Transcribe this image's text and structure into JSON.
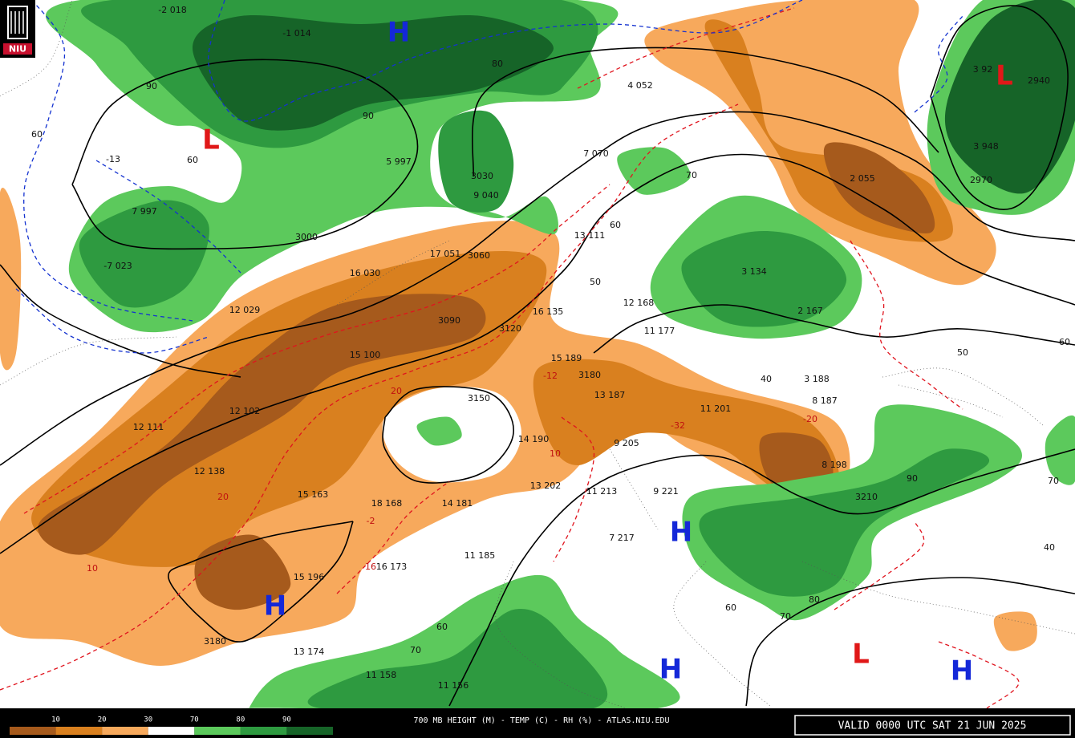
{
  "logo": "NIU",
  "footer": {
    "title": "700 MB HEIGHT (M) - TEMP (C) - RH (%) - ATLAS.NIU.EDU",
    "valid": "VALID 0000 UTC SAT 21 JUN 2025"
  },
  "legend": {
    "labels": [
      "10",
      "20",
      "30",
      "70",
      "80",
      "90"
    ],
    "colors": [
      "#a65a1c",
      "#d9801f",
      "#f7a95c",
      "#ffffff",
      "#5cc95c",
      "#2e9a40",
      "#166428"
    ]
  },
  "pressure_centers": [
    "H",
    "L",
    "L",
    "H",
    "H",
    "H",
    "L",
    "H"
  ],
  "contour_labels": [
    "3030",
    "3060",
    "3090",
    "3120",
    "3150",
    "3180",
    "3180",
    "3210",
    "3000",
    "2970",
    "2940",
    "90",
    "60",
    "60",
    "90",
    "80",
    "70",
    "60",
    "50",
    "40",
    "50",
    "60",
    "70",
    "40",
    "60",
    "60",
    "70",
    "90",
    "80",
    "70",
    "10",
    "20",
    "10",
    "-2",
    "-12",
    "-32",
    "-20",
    "16",
    "20"
  ],
  "station_labels": [
    "-2 018",
    "-1 014",
    "5 997",
    "17 051",
    "16 030",
    "12 029",
    "15 100",
    "12 102",
    "12 111",
    "12 138",
    "15 163",
    "18 168",
    "14 181",
    "13 202",
    "11 185",
    "15 196",
    "16 173",
    "13 174",
    "11 158",
    "11 156",
    "16 135",
    "12 168",
    "11 177",
    "15 189",
    "13 187",
    "14 190",
    "9 205",
    "11 213",
    "9 221",
    "7 217",
    "11 201",
    "4 052",
    "7 070",
    "9 040",
    "13 111",
    "2 055",
    "3 188",
    "8 187",
    "8 198",
    "-7 023",
    "7 997",
    "-13",
    "3 134",
    "2 167",
    "3 948",
    "3 92"
  ]
}
